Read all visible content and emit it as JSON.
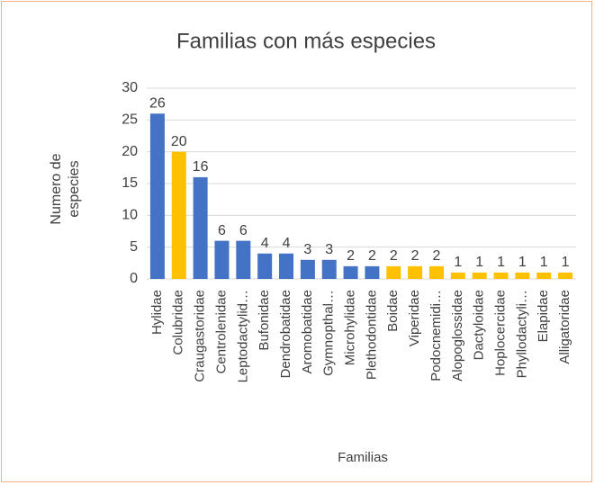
{
  "chart_data": {
    "type": "bar",
    "title": "Familias con más especies",
    "categories": [
      "Hylidae",
      "Colubridae",
      "Craugastoridae",
      "Centrolenidae",
      "Leptodactylid…",
      "Bufonidae",
      "Dendrobatidae",
      "Aromobatidae",
      "Gymnopthal…",
      "Microhylidae",
      "Plethodontidae",
      "Boidae",
      "Viperidae",
      "Podocnemidi…",
      "Alopoglossidae",
      "Dactyloidae",
      "Hoplocercidae",
      "Phyllodactyli…",
      "Elapidae",
      "Alligatoridae"
    ],
    "values": [
      26,
      20,
      16,
      6,
      6,
      4,
      4,
      3,
      3,
      2,
      2,
      2,
      2,
      2,
      1,
      1,
      1,
      1,
      1,
      1
    ],
    "colors": [
      "#4472c4",
      "#ffc000",
      "#4472c4",
      "#4472c4",
      "#4472c4",
      "#4472c4",
      "#4472c4",
      "#4472c4",
      "#4472c4",
      "#4472c4",
      "#4472c4",
      "#ffc000",
      "#ffc000",
      "#ffc000",
      "#ffc000",
      "#ffc000",
      "#ffc000",
      "#ffc000",
      "#ffc000",
      "#ffc000"
    ],
    "xlabel": "Familias",
    "ylabel": "Numero de especies",
    "ylim": [
      0,
      30
    ],
    "yticks": [
      0,
      5,
      10,
      15,
      20,
      25,
      30
    ],
    "grid": true
  }
}
